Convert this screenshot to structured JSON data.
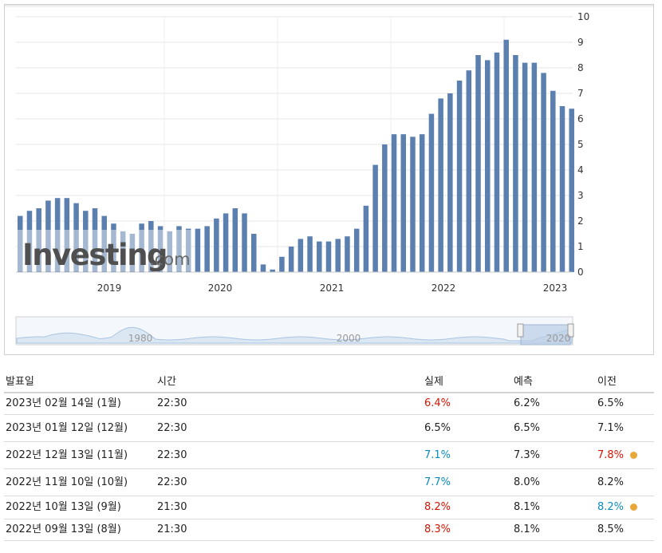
{
  "chart_data": {
    "type": "bar",
    "series": [
      {
        "values": [
          2.2,
          2.4,
          2.5,
          2.8,
          2.9,
          2.9,
          2.7,
          2.4,
          2.5,
          2.2,
          1.9,
          1.6,
          1.5,
          1.9,
          2.0,
          1.8,
          1.6,
          1.8,
          1.7,
          1.7,
          1.8,
          2.1,
          2.3,
          2.5,
          2.3,
          1.5,
          0.3,
          0.1,
          0.6,
          1.0,
          1.3,
          1.4,
          1.2,
          1.2,
          1.3,
          1.4,
          1.7,
          2.6,
          4.2,
          5.0,
          5.4,
          5.4,
          5.3,
          5.4,
          6.2,
          6.8,
          7.0,
          7.5,
          7.9,
          8.5,
          8.3,
          8.6,
          9.1,
          8.5,
          8.2,
          8.2,
          7.8,
          7.1,
          6.5,
          6.4
        ]
      }
    ],
    "x_ticks": [
      "2019",
      "2020",
      "2021",
      "2022",
      "2023"
    ],
    "y_ticks": [
      "0",
      "1",
      "2",
      "3",
      "4",
      "5",
      "6",
      "7",
      "8",
      "9",
      "10"
    ],
    "ylim": [
      0,
      10
    ],
    "bar_color": "#5b7fae",
    "grid": true,
    "watermark": "Investing.com",
    "navigator_ticks": [
      "1980",
      "2000",
      "2020"
    ]
  },
  "table": {
    "headers": {
      "release_date": "발표일",
      "time": "시간",
      "actual": "실제",
      "forecast": "예측",
      "previous": "이전"
    },
    "rows": [
      {
        "date": "2023년 02월 14일 (1월)",
        "time": "22:30",
        "actual": "6.4%",
        "actual_color": "red",
        "forecast": "6.2%",
        "previous": "6.5%",
        "previous_color": "",
        "dot": false
      },
      {
        "date": "2023년 01월 12일 (12월)",
        "time": "22:30",
        "actual": "6.5%",
        "actual_color": "",
        "forecast": "6.5%",
        "previous": "7.1%",
        "previous_color": "",
        "dot": false
      },
      {
        "date": "2022년 12월 13일 (11월)",
        "time": "22:30",
        "actual": "7.1%",
        "actual_color": "blue",
        "forecast": "7.3%",
        "previous": "7.8%",
        "previous_color": "red",
        "dot": true
      },
      {
        "date": "2022년 11월 10일 (10월)",
        "time": "22:30",
        "actual": "7.7%",
        "actual_color": "blue",
        "forecast": "8.0%",
        "previous": "8.2%",
        "previous_color": "",
        "dot": false
      },
      {
        "date": "2022년 10월 13일 (9월)",
        "time": "21:30",
        "actual": "8.2%",
        "actual_color": "red",
        "forecast": "8.1%",
        "previous": "8.2%",
        "previous_color": "blue",
        "dot": true
      },
      {
        "date": "2022년 09월 13일 (8월)",
        "time": "21:30",
        "actual": "8.3%",
        "actual_color": "red",
        "forecast": "8.1%",
        "previous": "8.5%",
        "previous_color": "",
        "dot": false
      }
    ]
  }
}
